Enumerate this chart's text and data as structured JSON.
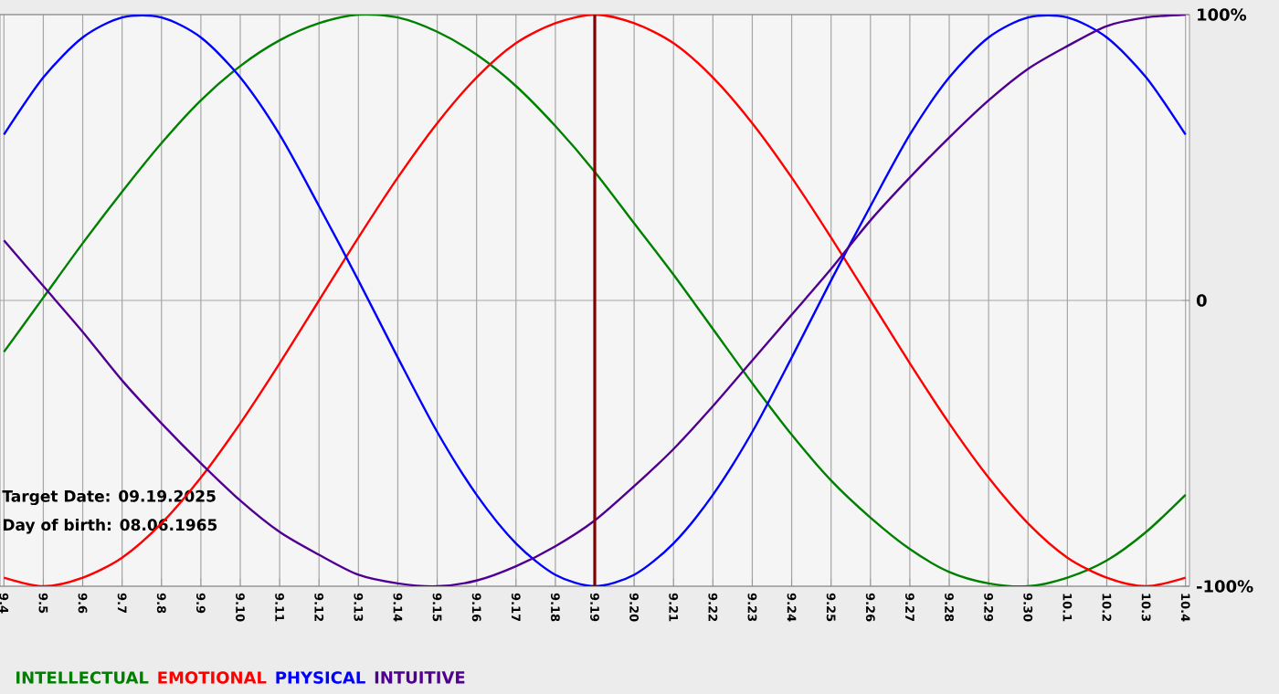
{
  "chart_data": {
    "type": "line",
    "categories": [
      "9.4",
      "9.5",
      "9.6",
      "9.7",
      "9.8",
      "9.9",
      "9.10",
      "9.11",
      "9.12",
      "9.13",
      "9.14",
      "9.15",
      "9.16",
      "9.17",
      "9.18",
      "9.19",
      "9.20",
      "9.21",
      "9.22",
      "9.23",
      "9.24",
      "9.25",
      "9.26",
      "9.27",
      "9.28",
      "9.29",
      "9.30",
      "10.1",
      "10.2",
      "10.3",
      "10.4"
    ],
    "series": [
      {
        "name": "INTELLECTUAL",
        "color": "#008000",
        "values": [
          -18,
          1,
          20,
          38,
          55,
          70,
          82,
          91,
          97,
          100,
          99,
          94,
          86,
          75,
          61,
          45,
          27,
          9,
          -10,
          -29,
          -47,
          -63,
          -76,
          -87,
          -95,
          -99,
          -100,
          -97,
          -91,
          -81,
          -68
        ]
      },
      {
        "name": "EMOTIONAL",
        "color": "#ff0000",
        "values": [
          -97,
          -100,
          -97,
          -90,
          -78,
          -62,
          -43,
          -22,
          0,
          22,
          43,
          62,
          78,
          90,
          97,
          100,
          97,
          90,
          78,
          62,
          43,
          22,
          0,
          -22,
          -43,
          -62,
          -78,
          -90,
          -97,
          -100,
          -97
        ]
      },
      {
        "name": "PHYSICAL",
        "color": "#0000ff",
        "values": [
          58,
          78,
          92,
          99,
          99,
          92,
          78,
          58,
          33,
          7,
          -20,
          -46,
          -68,
          -85,
          -96,
          -100,
          -96,
          -85,
          -68,
          -46,
          -20,
          7,
          33,
          58,
          78,
          92,
          99,
          99,
          92,
          78,
          58
        ]
      },
      {
        "name": "INTUITIVE",
        "color": "#500090",
        "values": [
          21,
          5,
          -11,
          -28,
          -43,
          -57,
          -70,
          -81,
          -89,
          -96,
          -99,
          -100,
          -98,
          -93,
          -86,
          -77,
          -65,
          -52,
          -37,
          -21,
          -5,
          11,
          28,
          43,
          57,
          70,
          81,
          89,
          96,
          99,
          100
        ]
      }
    ],
    "ylim": [
      -100,
      100
    ],
    "yticks": [
      {
        "value": -100,
        "label": "-100%"
      },
      0,
      {
        "value": 100,
        "label": "100%"
      }
    ],
    "grid": true,
    "legend": "bottom",
    "marker": "none",
    "ref_lines": [
      {
        "axis": "x",
        "value": "9.19",
        "color": "#800000"
      }
    ],
    "annotations": [
      "Target Date: 09.19.2025",
      "Day of birth: 08.06.1965"
    ]
  }
}
